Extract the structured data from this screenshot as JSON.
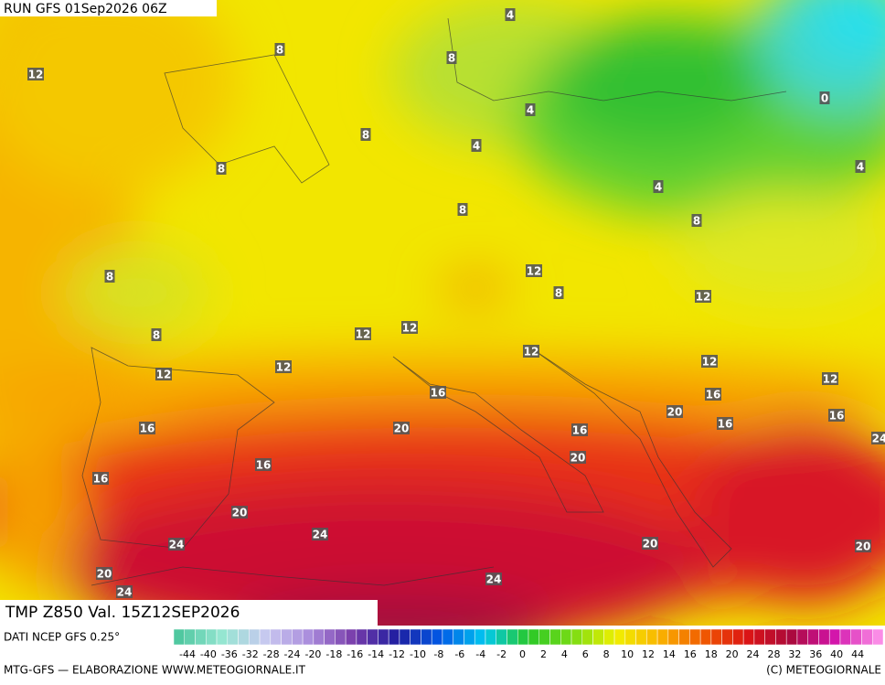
{
  "header": {
    "run": "RUN GFS 01Sep2026 06Z",
    "field": "TMP Z850 Val. 15Z12SEP2026"
  },
  "map": {
    "contour_labels": [
      12,
      8,
      4,
      8,
      4,
      8,
      4,
      0,
      8,
      4,
      4,
      8,
      8,
      8,
      12,
      8,
      12,
      8,
      12,
      12,
      12,
      12,
      12,
      12,
      12,
      16,
      16,
      20,
      16,
      20,
      16,
      16,
      16,
      24,
      20,
      16,
      16,
      20,
      24,
      24,
      20,
      20,
      20,
      24,
      24
    ]
  },
  "colorbar": {
    "source": "DATI NCEP GFS 0.25°",
    "tick_labels": [
      "-44",
      "-40",
      "-36",
      "-32",
      "-28",
      "-24",
      "-20",
      "-18",
      "-16",
      "-14",
      "-12",
      "-10",
      "-8",
      "-6",
      "-4",
      "-2",
      "0",
      "2",
      "4",
      "6",
      "8",
      "10",
      "12",
      "14",
      "16",
      "18",
      "20",
      "24",
      "28",
      "32",
      "36",
      "40",
      "44"
    ]
  },
  "footer": {
    "left": "MTG-GFS — ELABORAZIONE WWW.METEOGIORNALE.IT",
    "right": "(C) METEOGIORNALE"
  }
}
